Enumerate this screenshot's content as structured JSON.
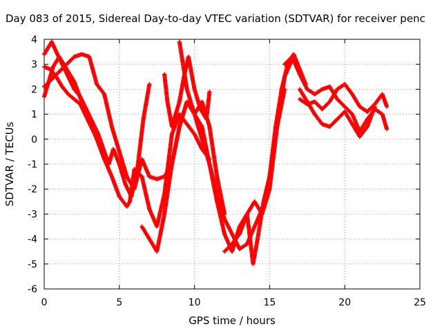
{
  "chart_data": {
    "type": "scatter",
    "title": "Day 083 of 2015, Sidereal Day-to-day VTEC variation (SDTVAR) for receiver penc",
    "xlabel": "GPS time / hours",
    "ylabel": "SDTVAR / TECUs",
    "xlim": [
      0,
      25
    ],
    "ylim": [
      -6,
      4
    ],
    "xticks": [
      "0",
      "5",
      "10",
      "15",
      "20",
      "25"
    ],
    "yticks": [
      "-6",
      "-5",
      "-4",
      "-3",
      "-2",
      "-1",
      "0",
      "1",
      "2",
      "3",
      "4"
    ],
    "grid": true,
    "marker": "+",
    "color": "#ff0000",
    "series": [
      {
        "x": [
          0.0,
          0.3,
          0.6,
          1.0,
          1.5,
          2.0,
          2.5,
          3.0,
          3.5,
          4.0,
          4.5,
          5.0,
          5.5,
          5.7,
          6.0,
          6.5,
          7.0,
          7.5,
          8.0,
          8.5,
          9.0,
          9.5,
          10.0,
          10.5,
          11.0
        ],
        "y": [
          1.7,
          2.3,
          2.9,
          3.3,
          2.8,
          2.3,
          1.5,
          0.8,
          0.0,
          -0.8,
          -1.5,
          -2.3,
          -2.7,
          -2.5,
          -1.2,
          -1.5,
          -2.8,
          -3.5,
          -2.2,
          0.2,
          1.0,
          0.6,
          0.2,
          -0.4,
          -0.8
        ]
      },
      {
        "x": [
          0.0,
          0.3,
          0.5,
          0.8,
          1.2,
          1.6,
          2.0,
          2.4,
          2.8,
          3.2,
          3.6,
          4.0,
          4.3,
          4.6,
          5.0,
          5.4,
          5.8,
          6.2,
          6.6,
          7.0
        ],
        "y": [
          3.4,
          3.7,
          3.9,
          3.5,
          3.0,
          2.5,
          2.0,
          1.7,
          1.2,
          0.7,
          0.2,
          -0.5,
          -1.0,
          -0.4,
          -1.0,
          -1.8,
          -2.3,
          -1.2,
          0.8,
          2.2
        ]
      },
      {
        "x": [
          0.0,
          0.4,
          0.8,
          1.2,
          1.6,
          2.0,
          2.4,
          2.8,
          3.2,
          3.6,
          4.0,
          4.2
        ],
        "y": [
          2.9,
          2.8,
          2.5,
          2.1,
          1.8,
          1.6,
          1.4,
          0.9,
          0.4,
          -0.1,
          -0.8,
          -1.0
        ]
      },
      {
        "x": [
          0.0,
          0.5,
          1.0,
          1.5,
          2.0,
          2.5,
          3.0,
          3.5,
          4.0,
          4.5,
          5.0,
          5.5,
          6.0,
          6.5,
          7.0,
          7.5,
          8.0,
          8.5,
          9.0,
          9.5,
          10.0,
          10.5,
          11.0,
          11.5,
          12.0
        ],
        "y": [
          2.1,
          2.4,
          2.7,
          3.0,
          3.3,
          3.4,
          3.3,
          2.2,
          1.8,
          0.5,
          -0.5,
          -1.5,
          -2.0,
          -0.8,
          -1.5,
          -1.6,
          -1.5,
          -1.0,
          0.5,
          1.5,
          1.0,
          1.5,
          0.5,
          -1.5,
          -3.0
        ]
      },
      {
        "x": [
          6.5,
          7.0,
          7.5,
          8.0,
          8.5,
          9.0,
          9.5,
          10.0,
          10.5,
          11.0,
          11.5,
          12.0,
          12.5,
          13.0,
          13.5,
          14.0,
          14.5,
          15.0,
          15.5,
          16.0,
          16.5
        ],
        "y": [
          -3.5,
          -4.0,
          -4.5,
          -3.0,
          -1.0,
          0.5,
          1.5,
          1.0,
          0.0,
          -1.0,
          -2.5,
          -3.8,
          -4.5,
          -3.5,
          -3.0,
          -2.5,
          -3.0,
          -2.0,
          0.5,
          2.5,
          3.2
        ]
      },
      {
        "x": [
          9.0,
          9.5,
          10.0,
          10.5,
          11.0,
          11.5,
          12.0,
          12.5,
          13.0,
          13.5,
          14.0,
          14.5,
          15.0,
          15.5,
          16.0
        ],
        "y": [
          3.9,
          2.0,
          1.0,
          0.5,
          -1.0,
          -2.2,
          -3.2,
          -3.8,
          -4.4,
          -4.2,
          -3.5,
          -2.8,
          -1.5,
          0.5,
          2.0
        ]
      },
      {
        "x": [
          12.0,
          12.5,
          13.0,
          13.5,
          13.9,
          14.2,
          14.6,
          15.0,
          15.4,
          15.8,
          16.2,
          16.6,
          17.0,
          17.4
        ],
        "y": [
          -4.5,
          -4.2,
          -3.8,
          -3.0,
          -5.0,
          -4.0,
          -2.5,
          -1.5,
          0.5,
          2.0,
          3.0,
          3.4,
          2.8,
          2.2
        ]
      },
      {
        "x": [
          8.0,
          8.2,
          8.5,
          9.0,
          9.3,
          9.6,
          10.0,
          10.4,
          10.8,
          11.0
        ],
        "y": [
          2.6,
          1.5,
          0.5,
          1.5,
          2.5,
          3.3,
          2.0,
          1.2,
          0.8,
          1.9
        ]
      },
      {
        "x": [
          16.0,
          16.5,
          17.0,
          17.5,
          18.0,
          18.5,
          19.0,
          19.5,
          20.0,
          20.5,
          21.0,
          21.5,
          22.0,
          22.5,
          22.8
        ],
        "y": [
          3.0,
          3.3,
          2.6,
          2.0,
          1.8,
          2.0,
          2.1,
          1.6,
          1.3,
          1.0,
          0.3,
          0.8,
          1.2,
          1.0,
          0.4
        ]
      },
      {
        "x": [
          17.0,
          17.5,
          18.0,
          18.5,
          19.0,
          19.5,
          20.0,
          20.5,
          21.0,
          21.5,
          22.0,
          22.5,
          22.8
        ],
        "y": [
          1.6,
          1.4,
          1.5,
          1.2,
          1.5,
          2.0,
          2.2,
          1.8,
          1.3,
          1.1,
          1.4,
          1.8,
          1.3
        ]
      },
      {
        "x": [
          17.0,
          17.5,
          18.0,
          18.5,
          19.0,
          19.5,
          20.0,
          20.5,
          21.0,
          21.5,
          22.0
        ],
        "y": [
          2.0,
          1.5,
          1.0,
          0.6,
          0.5,
          0.8,
          1.1,
          0.6,
          0.1,
          0.5,
          1.3
        ]
      }
    ]
  }
}
